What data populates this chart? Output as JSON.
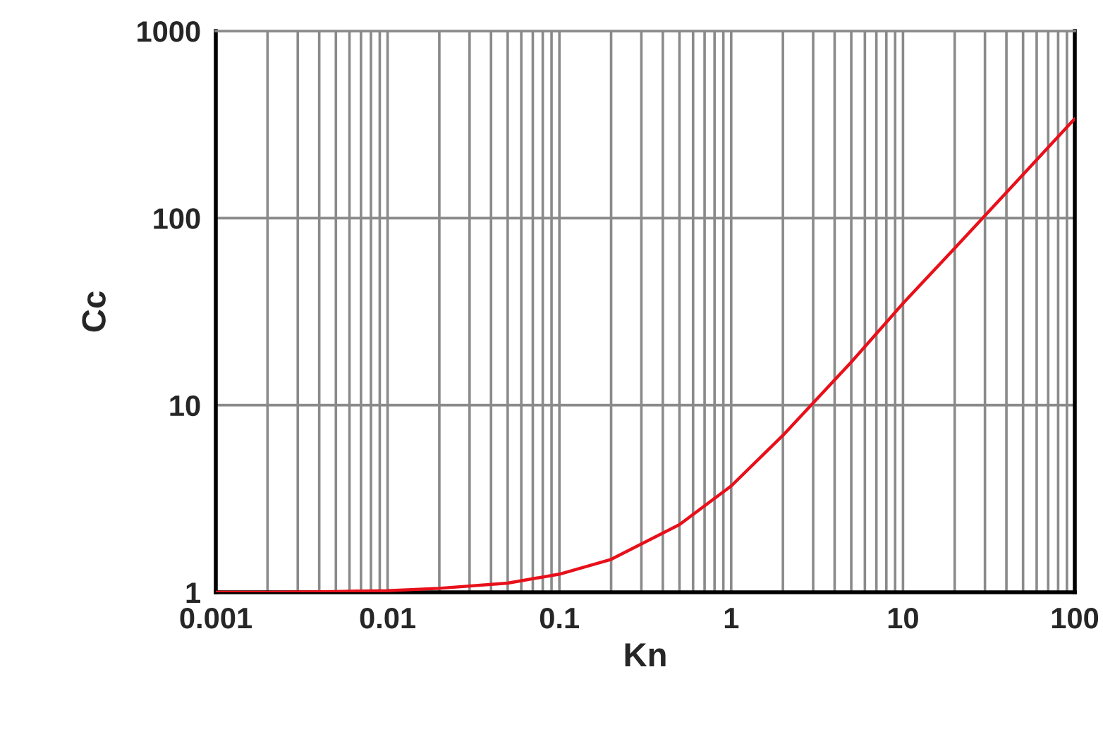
{
  "chart_data": {
    "type": "line",
    "xlabel": "Kn",
    "ylabel": "Cc",
    "x": [
      0.001,
      0.002,
      0.005,
      0.01,
      0.02,
      0.05,
      0.1,
      0.2,
      0.5,
      1,
      2,
      5,
      10,
      20,
      50,
      100
    ],
    "series": [
      {
        "color": "#e8101a",
        "values": [
          1.0,
          1.0,
          1.01,
          1.02,
          1.05,
          1.12,
          1.25,
          1.5,
          2.3,
          3.7,
          6.9,
          17,
          35,
          69,
          171,
          340
        ]
      }
    ],
    "log": "xy",
    "grid": true,
    "legend": false,
    "marker": "none",
    "line_style": "solid",
    "xlim": [
      0.001,
      100
    ],
    "ylim": [
      1,
      1000
    ],
    "xticks": [
      0.001,
      {
        "value": 0.002,
        "label": null
      },
      {
        "value": 0.003,
        "label": null
      },
      {
        "value": 0.004,
        "label": null
      },
      {
        "value": 0.005,
        "label": null
      },
      {
        "value": 0.006,
        "label": null
      },
      {
        "value": 0.007,
        "label": null
      },
      {
        "value": 0.008,
        "label": null
      },
      {
        "value": 0.009,
        "label": null
      },
      0.01,
      {
        "value": 0.02,
        "label": null
      },
      {
        "value": 0.03,
        "label": null
      },
      {
        "value": 0.04,
        "label": null
      },
      {
        "value": 0.05,
        "label": null
      },
      {
        "value": 0.06,
        "label": null
      },
      {
        "value": 0.07,
        "label": null
      },
      {
        "value": 0.08,
        "label": null
      },
      {
        "value": 0.09,
        "label": null
      },
      0.1,
      {
        "value": 0.2,
        "label": null
      },
      {
        "value": 0.3,
        "label": null
      },
      {
        "value": 0.4,
        "label": null
      },
      {
        "value": 0.5,
        "label": null
      },
      {
        "value": 0.6,
        "label": null
      },
      {
        "value": 0.7,
        "label": null
      },
      {
        "value": 0.8,
        "label": null
      },
      {
        "value": 0.9,
        "label": null
      },
      1,
      {
        "value": 2,
        "label": null
      },
      {
        "value": 3,
        "label": null
      },
      {
        "value": 4,
        "label": null
      },
      {
        "value": 5,
        "label": null
      },
      {
        "value": 6,
        "label": null
      },
      {
        "value": 7,
        "label": null
      },
      {
        "value": 8,
        "label": null
      },
      {
        "value": 9,
        "label": null
      },
      10,
      {
        "value": 20,
        "label": null
      },
      {
        "value": 30,
        "label": null
      },
      {
        "value": 40,
        "label": null
      },
      {
        "value": 50,
        "label": null
      },
      {
        "value": 60,
        "label": null
      },
      {
        "value": 70,
        "label": null
      },
      {
        "value": 80,
        "label": null
      },
      {
        "value": 90,
        "label": null
      },
      100
    ],
    "yticks": [
      1,
      10,
      100,
      1000
    ]
  }
}
